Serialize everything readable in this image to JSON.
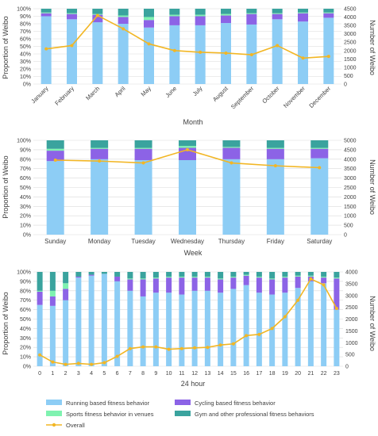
{
  "colors": {
    "running": "#8dcdf5",
    "cycling": "#8c63e6",
    "sports": "#7ff2b0",
    "gym": "#3aa39e",
    "overall": "#f2b624",
    "grid": "#d9d9d9",
    "text": "#404040"
  },
  "legend": {
    "running": "Running based fitness behavior",
    "cycling": "Cycling based fitness behavior",
    "sports": "Sports fitness behavior in venues",
    "gym": "Gym and other professional fitness behaviors",
    "overall": "Overall"
  },
  "chart_data": [
    {
      "type": "bar",
      "stacked": true,
      "xlabel": "Month",
      "ylabel_left": "Proportion of Weibo",
      "ylabel_right": "Number of Weibo",
      "left_ticks": [
        "0%",
        "10%",
        "20%",
        "30%",
        "40%",
        "50%",
        "60%",
        "70%",
        "80%",
        "90%",
        "100%"
      ],
      "right_ticks": [
        "0",
        "500",
        "1000",
        "1500",
        "2000",
        "2500",
        "3000",
        "3500",
        "4000",
        "4500"
      ],
      "ylim_left": [
        0,
        100
      ],
      "ylim_right": [
        0,
        4500
      ],
      "categories": [
        "January",
        "February",
        "March",
        "April",
        "May",
        "June",
        "July",
        "August",
        "September",
        "October",
        "November",
        "December"
      ],
      "series": [
        {
          "name": "Running based fitness behavior",
          "values": [
            90,
            86,
            82,
            80,
            75,
            78,
            78,
            81,
            79,
            86,
            83,
            88
          ]
        },
        {
          "name": "Cycling based fitness behavior",
          "values": [
            4,
            7,
            10,
            9,
            10,
            12,
            12,
            10,
            14,
            7,
            11,
            6
          ]
        },
        {
          "name": "Sports fitness behavior in venues",
          "values": [
            1,
            1,
            1,
            2,
            4,
            2,
            2,
            2,
            1,
            1,
            1,
            1
          ]
        },
        {
          "name": "Gym and other professional fitness behaviors",
          "values": [
            5,
            6,
            7,
            9,
            11,
            8,
            8,
            7,
            6,
            6,
            5,
            5
          ]
        },
        {
          "name": "Overall",
          "axis": "right",
          "values": [
            2100,
            2300,
            4100,
            3300,
            2400,
            2000,
            1900,
            1850,
            1750,
            2300,
            1550,
            1650
          ]
        }
      ]
    },
    {
      "type": "bar",
      "stacked": true,
      "xlabel": "Week",
      "ylabel_left": "Proportion of Weibo",
      "ylabel_right": "Number of Weibo",
      "left_ticks": [
        "0%",
        "10%",
        "20%",
        "30%",
        "40%",
        "50%",
        "60%",
        "70%",
        "80%",
        "90%",
        "100%"
      ],
      "right_ticks": [
        "0",
        "500",
        "1000",
        "1500",
        "2000",
        "2500",
        "3000",
        "3500",
        "4000",
        "4500",
        "5000"
      ],
      "ylim_left": [
        0,
        100
      ],
      "ylim_right": [
        0,
        5000
      ],
      "categories": [
        "Sunday",
        "Monday",
        "Tuesday",
        "Wednesday",
        "Thursday",
        "Friday",
        "Saturday"
      ],
      "series": [
        {
          "name": "Running based fitness behavior",
          "values": [
            78,
            80,
            79,
            79,
            80,
            80,
            81
          ]
        },
        {
          "name": "Cycling based fitness behavior",
          "values": [
            11,
            11,
            12,
            13,
            12,
            11,
            10
          ]
        },
        {
          "name": "Sports fitness behavior in venues",
          "values": [
            2,
            1,
            1,
            2,
            1,
            1,
            1
          ]
        },
        {
          "name": "Gym and other professional fitness behaviors",
          "values": [
            9,
            8,
            8,
            6,
            7,
            8,
            8
          ]
        },
        {
          "name": "Overall",
          "axis": "right",
          "values": [
            3950,
            3900,
            3800,
            4500,
            3800,
            3650,
            3550
          ]
        }
      ]
    },
    {
      "type": "bar",
      "stacked": true,
      "xlabel": "24 hour",
      "ylabel_left": "Proportion of Weibo",
      "ylabel_right": "Number of Weibo",
      "left_ticks": [
        "0%",
        "10%",
        "20%",
        "30%",
        "40%",
        "50%",
        "60%",
        "70%",
        "80%",
        "90%",
        "100%"
      ],
      "right_ticks": [
        "0",
        "500",
        "1000",
        "1500",
        "2000",
        "2500",
        "3000",
        "3500",
        "4000"
      ],
      "ylim_left": [
        0,
        100
      ],
      "ylim_right": [
        0,
        4000
      ],
      "categories": [
        "0",
        "1",
        "2",
        "3",
        "4",
        "5",
        "6",
        "7",
        "8",
        "9",
        "10",
        "11",
        "12",
        "13",
        "14",
        "15",
        "16",
        "17",
        "18",
        "19",
        "20",
        "21",
        "22",
        "23"
      ],
      "series": [
        {
          "name": "Running based fitness behavior",
          "values": [
            65,
            64,
            70,
            94,
            96,
            98,
            90,
            80,
            74,
            78,
            78,
            76,
            80,
            80,
            78,
            82,
            86,
            78,
            76,
            78,
            83,
            90,
            88,
            60
          ]
        },
        {
          "name": "Cycling based fitness behavior",
          "values": [
            14,
            10,
            12,
            1,
            1,
            0,
            5,
            12,
            18,
            15,
            16,
            18,
            14,
            14,
            14,
            12,
            10,
            16,
            16,
            16,
            12,
            5,
            6,
            33
          ]
        },
        {
          "name": "Sports fitness behavior in venues",
          "values": [
            1,
            6,
            6,
            0,
            0,
            0,
            0,
            1,
            1,
            1,
            1,
            1,
            1,
            1,
            1,
            1,
            1,
            1,
            1,
            1,
            1,
            1,
            1,
            1
          ]
        },
        {
          "name": "Gym and other professional fitness behaviors",
          "values": [
            20,
            20,
            12,
            5,
            3,
            2,
            5,
            7,
            7,
            6,
            5,
            5,
            5,
            5,
            7,
            5,
            3,
            5,
            7,
            5,
            4,
            4,
            5,
            6
          ]
        },
        {
          "name": "Overall",
          "axis": "right",
          "values": [
            480,
            180,
            80,
            120,
            80,
            150,
            420,
            750,
            820,
            820,
            720,
            750,
            780,
            800,
            900,
            950,
            1300,
            1350,
            1600,
            2100,
            2800,
            3700,
            3450,
            2450
          ]
        }
      ]
    }
  ]
}
